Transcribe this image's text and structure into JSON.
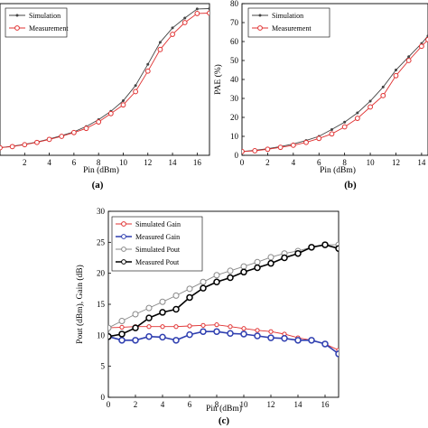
{
  "chart_data": [
    {
      "panel_label": "(a)",
      "type": "line",
      "xlabel": "Pin (dBm)",
      "ylabel": "",
      "xlim": [
        0,
        17
      ],
      "ylim": [
        0,
        40
      ],
      "x_ticks": [
        2,
        4,
        6,
        8,
        10,
        12,
        14,
        16
      ],
      "y_ticks": [],
      "grid": false,
      "legend": "top-left",
      "x": [
        0,
        1,
        2,
        3,
        4,
        5,
        6,
        7,
        8,
        9,
        10,
        11,
        12,
        13,
        14,
        15,
        16,
        17
      ],
      "series": [
        {
          "name": "Simulation",
          "color": "#444444",
          "marker": "dot",
          "values": [
            2.0,
            2.4,
            2.9,
            3.5,
            4.3,
            5.2,
            6.2,
            7.6,
            9.4,
            11.6,
            14.4,
            18.4,
            24.0,
            29.8,
            33.6,
            36.2,
            38.6,
            38.7
          ]
        },
        {
          "name": "Measurement",
          "color": "#e03030",
          "marker": "circle",
          "values": [
            2.0,
            2.3,
            2.8,
            3.4,
            4.2,
            5.0,
            6.0,
            7.1,
            8.8,
            11.0,
            13.3,
            16.8,
            22.2,
            27.9,
            31.9,
            35.0,
            37.4,
            37.5
          ]
        }
      ]
    },
    {
      "panel_label": "(b)",
      "type": "line",
      "xlabel": "Pin (dBm)",
      "ylabel": "PAE (%)",
      "xlim": [
        0,
        14.5
      ],
      "ylim": [
        0,
        80
      ],
      "x_ticks": [
        0,
        2,
        4,
        6,
        8,
        10,
        12,
        14
      ],
      "y_ticks": [
        0,
        10,
        20,
        30,
        40,
        50,
        60,
        70,
        80
      ],
      "grid": false,
      "legend": "top-left",
      "x": [
        0,
        1,
        2,
        3,
        4,
        5,
        6,
        7,
        8,
        9,
        10,
        11,
        12,
        13,
        14,
        14.5
      ],
      "series": [
        {
          "name": "Simulation",
          "color": "#444444",
          "marker": "dot",
          "values": [
            2,
            2.6,
            3.5,
            4.6,
            6,
            7.8,
            10,
            13.6,
            17.5,
            22.4,
            28.6,
            36,
            45,
            52,
            59,
            63
          ]
        },
        {
          "name": "Measurement",
          "color": "#e03030",
          "marker": "circle",
          "values": [
            2,
            2.4,
            3.2,
            4.2,
            5.3,
            6.8,
            8.9,
            11.3,
            15,
            19.5,
            25.5,
            31.5,
            42,
            50,
            57.5,
            61
          ]
        }
      ]
    },
    {
      "panel_label": "(c)",
      "type": "line",
      "xlabel": "Pin (dBm)",
      "ylabel": "Pout (dBm), Gain (dB)",
      "xlim": [
        0,
        17
      ],
      "ylim": [
        0,
        30
      ],
      "x_ticks": [
        0,
        2,
        4,
        6,
        8,
        10,
        12,
        14,
        16
      ],
      "y_ticks": [
        0,
        5,
        10,
        15,
        20,
        25,
        30
      ],
      "grid": false,
      "legend": "top-left",
      "x": [
        0,
        1,
        2,
        3,
        4,
        5,
        6,
        7,
        8,
        9,
        10,
        11,
        12,
        13,
        14,
        15,
        16,
        17
      ],
      "series": [
        {
          "name": "Simulated Gain",
          "color": "#e03030",
          "marker": "small-circle",
          "values": [
            11.2,
            11.3,
            11.4,
            11.4,
            11.4,
            11.4,
            11.5,
            11.6,
            11.7,
            11.4,
            11.1,
            10.8,
            10.6,
            10.2,
            9.6,
            9.2,
            8.6,
            7.6
          ]
        },
        {
          "name": "Measured Gain",
          "color": "#2f3fb0",
          "marker": "circle",
          "values": [
            9.8,
            9.2,
            9.2,
            9.8,
            9.7,
            9.2,
            10.1,
            10.6,
            10.6,
            10.3,
            10.2,
            9.9,
            9.6,
            9.5,
            9.2,
            9.2,
            8.6,
            7.0
          ]
        },
        {
          "name": "Simulated Pout",
          "color": "#888888",
          "marker": "circle",
          "values": [
            11.2,
            12.3,
            13.4,
            14.4,
            15.4,
            16.4,
            17.5,
            18.6,
            19.7,
            20.4,
            21.1,
            21.8,
            22.6,
            23.2,
            23.6,
            24.2,
            24.6,
            24.6
          ]
        },
        {
          "name": "Measured Pout",
          "color": "#000000",
          "marker": "circle",
          "values": [
            9.8,
            10.2,
            11.2,
            12.8,
            13.7,
            14.2,
            16.1,
            17.6,
            18.6,
            19.3,
            20.2,
            20.9,
            21.6,
            22.5,
            23.2,
            24.2,
            24.6,
            24.0
          ]
        }
      ]
    }
  ]
}
